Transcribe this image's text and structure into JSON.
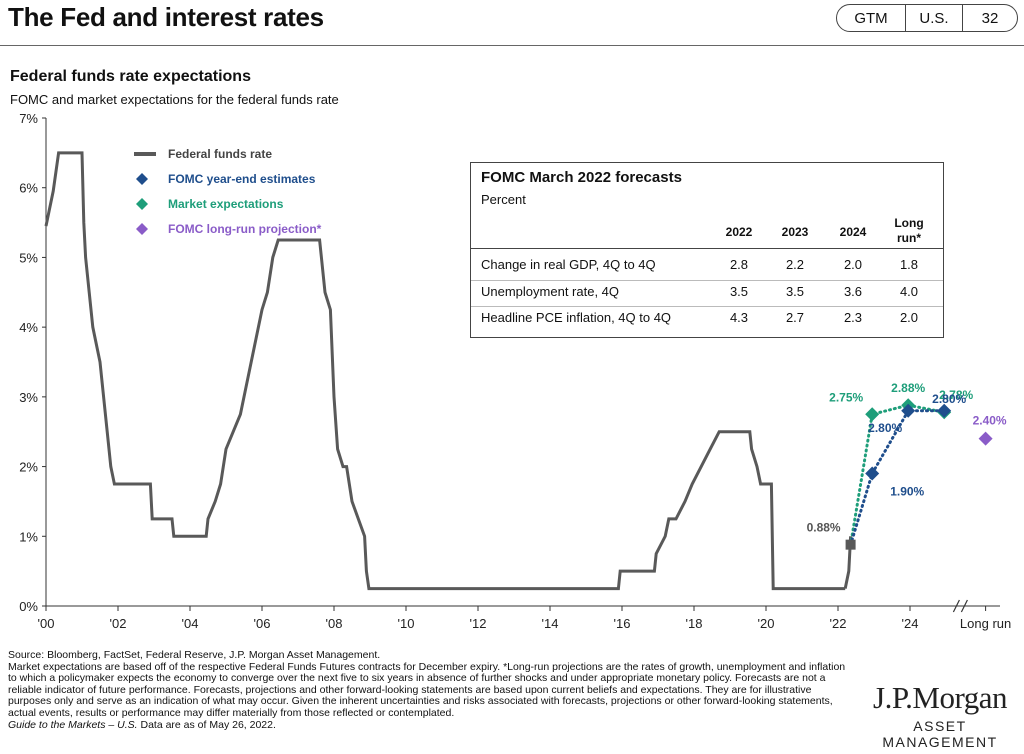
{
  "page": {
    "title": "The Fed and interest rates",
    "badge": {
      "left": "GTM",
      "middle": "U.S.",
      "number": "32"
    }
  },
  "chart_header": {
    "title": "Federal funds rate expectations",
    "subtitle": "FOMC and market expectations for the federal funds rate"
  },
  "chart_data": {
    "type": "line",
    "y_ticks": [
      "0%",
      "1%",
      "2%",
      "3%",
      "4%",
      "5%",
      "6%",
      "7%"
    ],
    "ylim": [
      0,
      7
    ],
    "x_ticks": [
      "'00",
      "'02",
      "'04",
      "'06",
      "'08",
      "'10",
      "'12",
      "'14",
      "'16",
      "'18",
      "'20",
      "'22",
      "'24",
      "Long run"
    ],
    "xlim": [
      2000.0,
      2026.5
    ],
    "grid": false,
    "legend_position": "top-left",
    "colors": {
      "fed_funds": "#595959",
      "fomc": "#1f4e8c",
      "market": "#1e9e7a",
      "long_run": "#8a5cc8"
    },
    "legend": [
      {
        "label": "Federal funds rate",
        "key": "fed_funds",
        "marker": "line"
      },
      {
        "label": "FOMC  year-end estimates",
        "key": "fomc",
        "marker": "diamond"
      },
      {
        "label": "Market expectations",
        "key": "market",
        "marker": "diamond"
      },
      {
        "label": "FOMC  long-run projection*",
        "key": "long_run",
        "marker": "diamond"
      }
    ],
    "fed_funds_rate": {
      "x": [
        2000.0,
        2000.1,
        2000.2,
        2000.35,
        2000.45,
        2000.6,
        2001.0,
        2001.05,
        2001.1,
        2001.2,
        2001.3,
        2001.4,
        2001.5,
        2001.6,
        2001.7,
        2001.8,
        2001.9,
        2002.0,
        2002.9,
        2002.95,
        2003.5,
        2003.55,
        2004.45,
        2004.5,
        2004.7,
        2004.85,
        2005.0,
        2005.2,
        2005.4,
        2005.6,
        2005.8,
        2006.0,
        2006.15,
        2006.3,
        2006.45,
        2006.5,
        2007.6,
        2007.65,
        2007.75,
        2007.9,
        2008.0,
        2008.1,
        2008.25,
        2008.35,
        2008.5,
        2008.85,
        2008.9,
        2008.97,
        2015.9,
        2015.95,
        2016.9,
        2016.95,
        2017.2,
        2017.3,
        2017.45,
        2017.5,
        2017.75,
        2017.95,
        2018.2,
        2018.45,
        2018.7,
        2018.95,
        2019.55,
        2019.6,
        2019.75,
        2019.85,
        2020.15,
        2020.2,
        2022.2
      ],
      "y": [
        5.45,
        5.7,
        5.95,
        6.5,
        6.5,
        6.5,
        6.5,
        5.5,
        5.0,
        4.5,
        4.0,
        3.75,
        3.5,
        3.0,
        2.5,
        2.0,
        1.75,
        1.75,
        1.75,
        1.25,
        1.25,
        1.0,
        1.0,
        1.25,
        1.5,
        1.75,
        2.25,
        2.5,
        2.75,
        3.25,
        3.75,
        4.25,
        4.5,
        5.0,
        5.25,
        5.25,
        5.25,
        5.0,
        4.5,
        4.25,
        3.0,
        2.25,
        2.0,
        2.0,
        1.5,
        1.0,
        0.5,
        0.25,
        0.25,
        0.5,
        0.5,
        0.75,
        1.0,
        1.25,
        1.25,
        1.25,
        1.5,
        1.75,
        2.0,
        2.25,
        2.5,
        2.5,
        2.5,
        2.25,
        2.0,
        1.75,
        1.75,
        0.25,
        0.25
      ]
    },
    "fed_funds_rise_2022": {
      "x": [
        2022.2,
        2022.3,
        2022.35
      ],
      "y": [
        0.25,
        0.5,
        1.0
      ]
    },
    "current_point": {
      "x": 2022.35,
      "y": 0.88,
      "label": "0.88%"
    },
    "fomc_estimates": {
      "x": [
        2022.35,
        2022.95,
        2023.95,
        2024.95
      ],
      "y": [
        0.88,
        1.9,
        2.8,
        2.8
      ],
      "labels": [
        "",
        "1.90%",
        "2.80%",
        "2.80%"
      ]
    },
    "market_expectations": {
      "x": [
        2022.35,
        2022.95,
        2023.95,
        2024.95
      ],
      "y": [
        0.88,
        2.75,
        2.88,
        2.78
      ],
      "labels": [
        "",
        "2.75%",
        "2.88%",
        "2.78%"
      ]
    },
    "long_run_projection": {
      "x": 2026.1,
      "y": 2.4,
      "label": "2.40%"
    },
    "table": {
      "title": "FOMC March 2022 forecasts",
      "subtitle": "Percent",
      "columns": [
        "2022",
        "2023",
        "2024",
        "Long run*"
      ],
      "rows": [
        {
          "label": "Change in real GDP, 4Q to 4Q",
          "values": [
            "2.8",
            "2.2",
            "2.0",
            "1.8"
          ]
        },
        {
          "label": "Unemployment rate, 4Q",
          "values": [
            "3.5",
            "3.5",
            "3.6",
            "4.0"
          ]
        },
        {
          "label": "Headline PCE inflation, 4Q to 4Q",
          "values": [
            "4.3",
            "2.7",
            "2.3",
            "2.0"
          ]
        }
      ]
    }
  },
  "table_header": {
    "col_long_1": "Long",
    "col_long_2": "run*"
  },
  "footnotes": {
    "source": "Source: Bloomberg, FactSet, Federal Reserve, J.P. Morgan Asset Management.",
    "note": "Market expectations are based off of the respective Federal Funds Futures contracts for December expiry. *Long-run projections are the rates of growth, unemployment and inflation to which a policymaker expects the economy to converge over the next five to six years in absence of further shocks and under appropriate monetary policy. Forecasts are not a reliable indicator of future performance. Forecasts, projections and other forward-looking statements are based upon current beliefs and expectations. They are for illustrative purposes only and serve as an indication of what may occur. Given the inherent uncertainties and risks associated with forecasts, projections or other forward-looking statements, actual events, results or performance may differ materially from those reflected or contemplated.",
    "guide": "Guide to the Markets – U.S.",
    "date": "Data are as of May 26, 2022."
  },
  "logo": {
    "name": "J.P.Morgan",
    "sub": "ASSET MANAGEMENT"
  }
}
